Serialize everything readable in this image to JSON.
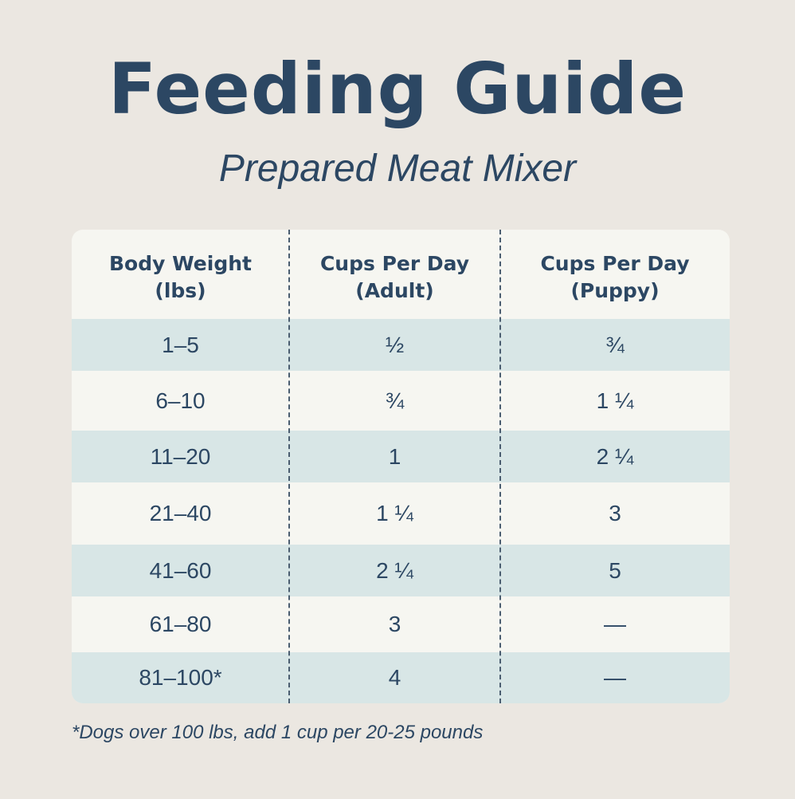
{
  "title": "Feeding Guide",
  "subtitle": "Prepared Meat Mixer",
  "table": {
    "headers": [
      {
        "line1": "Body Weight",
        "line2": "(lbs)"
      },
      {
        "line1": "Cups Per Day",
        "line2": "(Adult)"
      },
      {
        "line1": "Cups Per Day",
        "line2": "(Puppy)"
      }
    ],
    "rows": [
      [
        "1–5",
        "½",
        "¾"
      ],
      [
        "6–10",
        "¾",
        "1 ¼"
      ],
      [
        "11–20",
        "1",
        "2 ¼"
      ],
      [
        "21–40",
        "1 ¼",
        "3"
      ],
      [
        "41–60",
        "2 ¼",
        "5"
      ],
      [
        "61–80",
        "3",
        "—"
      ],
      [
        "81–100*",
        "4",
        "—"
      ]
    ]
  },
  "footnote": "*Dogs over 100 lbs, add 1 cup per 20-25 pounds",
  "colors": {
    "background": "#ebe7e1",
    "text": "#2c4763",
    "stripe": "#d8e6e6",
    "table": "#f6f6f1"
  }
}
